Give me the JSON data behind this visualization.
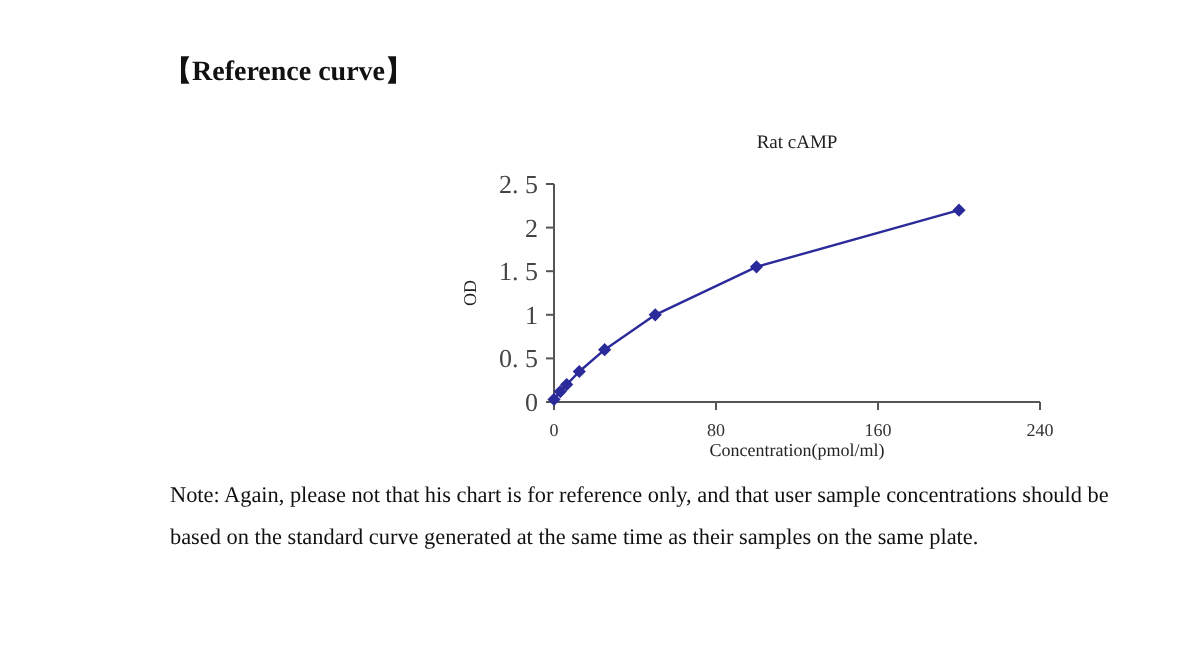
{
  "chart_data": {
    "type": "line",
    "title": "Rat cAMP",
    "subtitle": "【Reference curve】",
    "xlabel": "Concentration(pmol/ml)",
    "ylabel": "OD",
    "x": [
      0,
      3.125,
      6.25,
      12.5,
      25,
      50,
      100,
      200
    ],
    "series": [
      {
        "color": "#2a2a9a",
        "values": [
          0.03,
          0.12,
          0.2,
          0.35,
          0.6,
          1.0,
          1.55,
          2.2
        ]
      }
    ],
    "xlim": [
      0,
      240
    ],
    "xticks": [
      0,
      80,
      160,
      240
    ],
    "ylim": [
      0,
      2.5
    ],
    "yticks": [
      0,
      {
        "value": 0.5,
        "label": "0. 5"
      },
      1,
      {
        "value": 1.5,
        "label": "1. 5"
      },
      2,
      {
        "value": 2.5,
        "label": "2. 5"
      }
    ],
    "marker": "diamond",
    "line_style": "solid",
    "grid": false,
    "annotations": [
      "Note: Again, please not that his chart is for reference only, and that user sample concentrations should be based on the standard curve generated at the same time as their samples on the same plate."
    ]
  }
}
